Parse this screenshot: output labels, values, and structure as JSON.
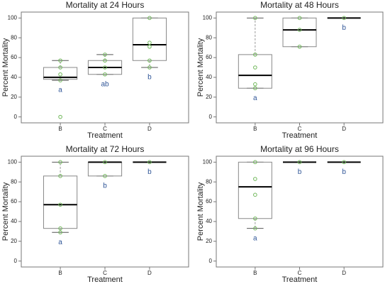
{
  "chart_data": [
    {
      "type": "box",
      "title": "Mortality at 24 Hours",
      "xlabel": "Treatment",
      "ylabel": "Percent Mortality",
      "categories": [
        "B",
        "C",
        "D"
      ],
      "ylim": [
        -6,
        106
      ],
      "yticks": [
        0,
        20,
        40,
        60,
        80,
        100
      ],
      "boxes": [
        {
          "min": 37,
          "q1": 38,
          "median": 40,
          "q3": 50,
          "max": 57
        },
        {
          "min": 43,
          "q1": 43,
          "median": 50,
          "q3": 57,
          "max": 63
        },
        {
          "min": 50,
          "q1": 57,
          "median": 73,
          "q3": 100,
          "max": 100
        }
      ],
      "points": [
        [
          0,
          37,
          43,
          50,
          57
        ],
        [
          43,
          50,
          57,
          63
        ],
        [
          50,
          57,
          71,
          75,
          100
        ]
      ],
      "letters": [
        "a",
        "ab",
        "b"
      ],
      "point_color": "#70b85a",
      "letter_color": "#2f5597"
    },
    {
      "type": "box",
      "title": "Mortality at 48 Hours",
      "xlabel": "Treatment",
      "ylabel": "Percent Mortality",
      "categories": [
        "B",
        "C",
        "D"
      ],
      "ylim": [
        -6,
        106
      ],
      "yticks": [
        0,
        20,
        40,
        60,
        80,
        100
      ],
      "boxes": [
        {
          "min": 29,
          "q1": 29,
          "median": 42,
          "q3": 63,
          "max": 100
        },
        {
          "min": 71,
          "q1": 71,
          "median": 88,
          "q3": 100,
          "max": 100
        },
        {
          "min": 100,
          "q1": 100,
          "median": 100,
          "q3": 100,
          "max": 100
        }
      ],
      "points": [
        [
          29,
          33,
          50,
          63,
          100
        ],
        [
          71,
          88,
          100
        ],
        [
          100
        ]
      ],
      "letters": [
        "a",
        null,
        "b"
      ],
      "point_color": "#70b85a",
      "letter_color": "#2f5597"
    },
    {
      "type": "box",
      "title": "Mortality at 72 Hours",
      "xlabel": "Treatment",
      "ylabel": "Percent Mortality",
      "categories": [
        "B",
        "C",
        "D"
      ],
      "ylim": [
        -6,
        106
      ],
      "yticks": [
        0,
        20,
        40,
        60,
        80,
        100
      ],
      "boxes": [
        {
          "min": 29,
          "q1": 33,
          "median": 57,
          "q3": 86,
          "max": 100
        },
        {
          "min": 86,
          "q1": 86,
          "median": 100,
          "q3": 100,
          "max": 100
        },
        {
          "min": 100,
          "q1": 100,
          "median": 100,
          "q3": 100,
          "max": 100
        }
      ],
      "points": [
        [
          29,
          33,
          57,
          86,
          100
        ],
        [
          86,
          100
        ],
        [
          100
        ]
      ],
      "letters": [
        "a",
        "b",
        "b"
      ],
      "point_color": "#70b85a",
      "letter_color": "#2f5597"
    },
    {
      "type": "box",
      "title": "Mortality at 96 Hours",
      "xlabel": "Treatment",
      "ylabel": "Percent Mortality",
      "categories": [
        "B",
        "C",
        "D"
      ],
      "ylim": [
        -6,
        106
      ],
      "yticks": [
        0,
        20,
        40,
        60,
        80,
        100
      ],
      "boxes": [
        {
          "min": 33,
          "q1": 43,
          "median": 75,
          "q3": 100,
          "max": 100
        },
        {
          "min": 100,
          "q1": 100,
          "median": 100,
          "q3": 100,
          "max": 100
        },
        {
          "min": 100,
          "q1": 100,
          "median": 100,
          "q3": 100,
          "max": 100
        }
      ],
      "points": [
        [
          33,
          43,
          67,
          83,
          100
        ],
        [
          100
        ],
        [
          100
        ]
      ],
      "letters": [
        "a",
        "b",
        "b"
      ],
      "point_color": "#70b85a",
      "letter_color": "#2f5597"
    }
  ]
}
